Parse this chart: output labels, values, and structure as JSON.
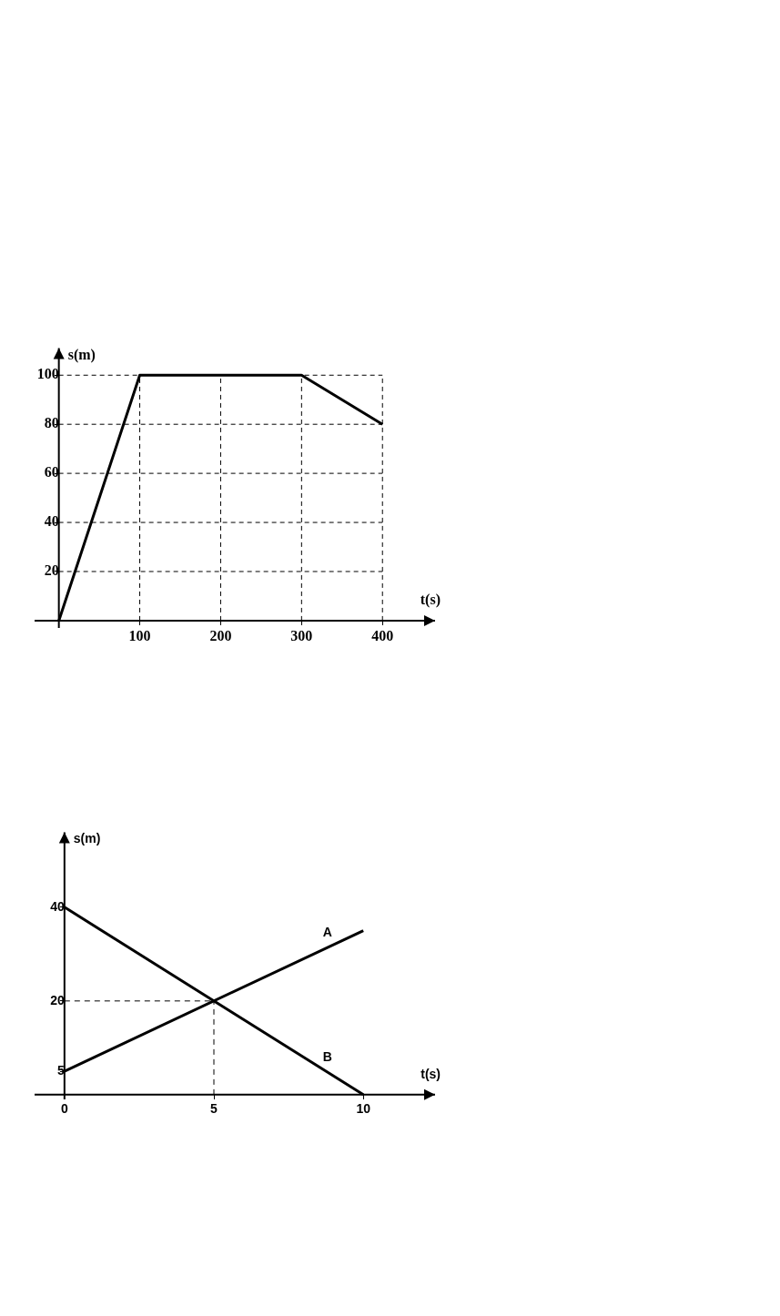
{
  "chart_data": [
    {
      "type": "line",
      "xlabel": "t(s)",
      "ylabel": "s(m)",
      "x": [
        0,
        100,
        300,
        400
      ],
      "values": [
        0,
        100,
        100,
        80
      ],
      "color": "#000000",
      "xlim": [
        -30,
        465
      ],
      "ylim": [
        -3,
        111
      ],
      "xticks": [
        100,
        200,
        300,
        400
      ],
      "yticks": [
        20,
        40,
        60,
        80,
        100
      ],
      "grid": true,
      "marker": "none"
    },
    {
      "type": "line",
      "xlabel": "t(s)",
      "ylabel": "s(m)",
      "x": [
        0,
        10
      ],
      "series": [
        {
          "name": "A",
          "color": "#000000",
          "values": [
            5,
            35
          ]
        },
        {
          "name": "B",
          "color": "#000000",
          "values": [
            40,
            0
          ]
        }
      ],
      "xlim": [
        -1,
        12.4
      ],
      "ylim": [
        -1,
        56
      ],
      "xticks": [
        0,
        5,
        10
      ],
      "yticks": [
        5,
        20,
        40
      ],
      "marker": "none",
      "ref_lines": [
        {
          "axis": "x",
          "value": 5,
          "line_style": "dashed"
        },
        {
          "axis": "y",
          "value": 20,
          "line_style": "dashed"
        }
      ]
    }
  ]
}
